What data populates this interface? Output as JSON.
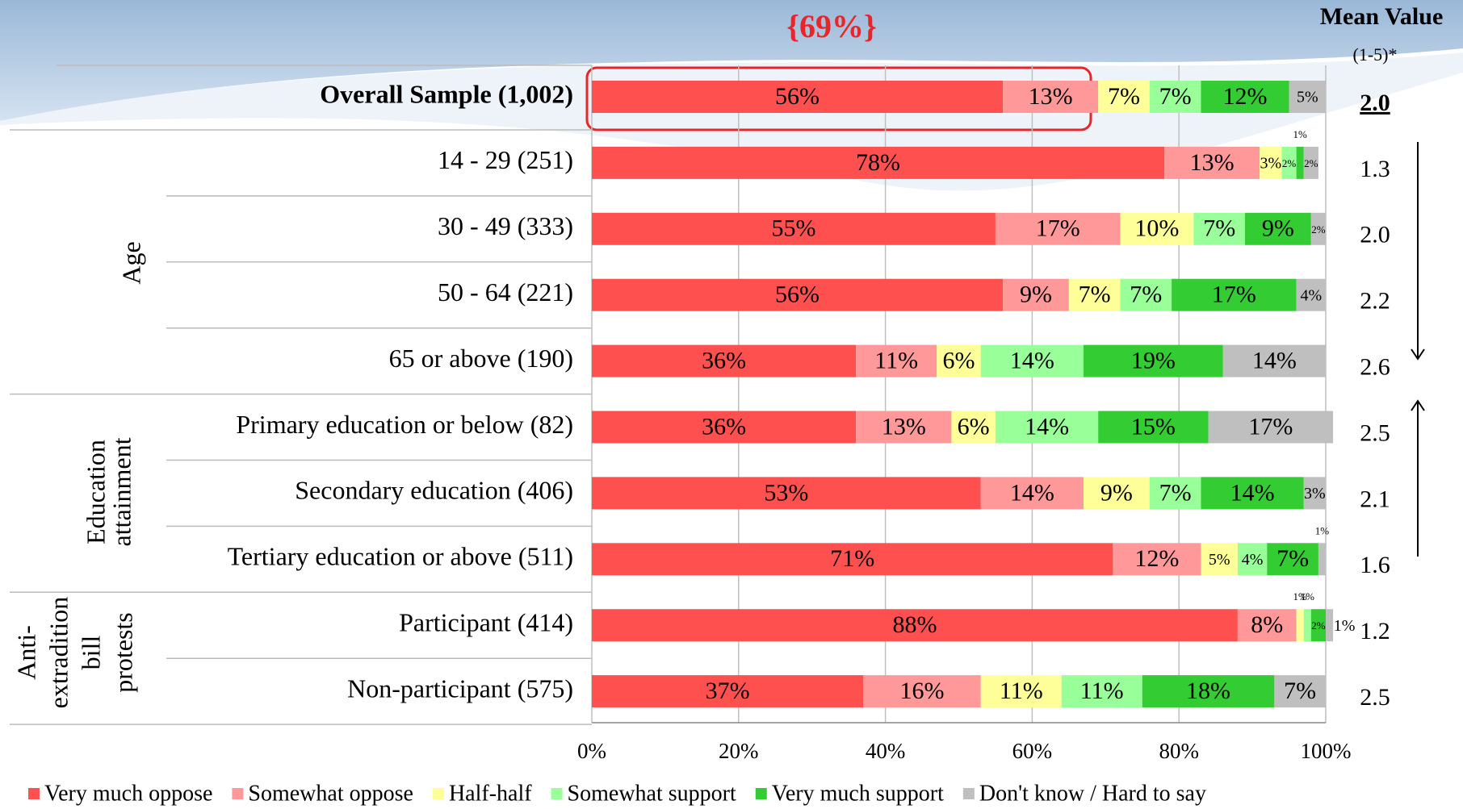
{
  "chart_data": {
    "type": "stacked_barh",
    "annotation": "{69%}",
    "mean_title": "Mean Value",
    "mean_subtitle": "(1-5)*",
    "categories": [
      "Overall Sample (1,002)",
      "14 - 29 (251)",
      "30 - 49 (333)",
      "50 - 64 (221)",
      "65 or above (190)",
      "Primary education or below (82)",
      "Secondary education (406)",
      "Tertiary education or above (511)",
      "Participant (414)",
      "Non-participant (575)"
    ],
    "group_labels": [
      [
        "Age"
      ],
      [
        "Education",
        "attainment"
      ],
      [
        "Anti-",
        "extradition",
        "bill",
        "protests"
      ]
    ],
    "mean_values": [
      "2.0",
      "1.3",
      "2.0",
      "2.2",
      "2.6",
      "2.5",
      "2.1",
      "1.6",
      "1.2",
      "2.5"
    ],
    "series": [
      {
        "name": "Very much oppose",
        "color": "#ff5050",
        "values": [
          56,
          78,
          55,
          56,
          36,
          36,
          53,
          71,
          88,
          37
        ],
        "value_labels": [
          "56%",
          "78%",
          "55%",
          "56%",
          "36%",
          "36%",
          "53%",
          "71%",
          "88%",
          "37%"
        ]
      },
      {
        "name": "Somewhat oppose",
        "color": "#ff9999",
        "values": [
          13,
          13,
          17,
          9,
          11,
          13,
          14,
          12,
          8,
          16
        ],
        "value_labels": [
          "13%",
          "13%",
          "17%",
          "9%",
          "11%",
          "13%",
          "14%",
          "12%",
          "8%",
          "16%"
        ]
      },
      {
        "name": "Half-half",
        "color": "#ffff99",
        "values": [
          7,
          3,
          10,
          7,
          6,
          6,
          9,
          5,
          1,
          11
        ],
        "value_labels": [
          "7%",
          "3%",
          "10%",
          "7%",
          "6%",
          "6%",
          "9%",
          "5%",
          "1%",
          "11%"
        ]
      },
      {
        "name": "Somewhat support",
        "color": "#99ff99",
        "values": [
          7,
          2,
          7,
          7,
          14,
          14,
          7,
          4,
          1,
          11
        ],
        "value_labels": [
          "7%",
          "2%",
          "7%",
          "7%",
          "14%",
          "14%",
          "7%",
          "4%",
          "1%",
          "11%"
        ]
      },
      {
        "name": "Very much support",
        "color": "#33cc33",
        "values": [
          12,
          1,
          9,
          17,
          19,
          15,
          14,
          7,
          2,
          18
        ],
        "value_labels": [
          "12%",
          "1%",
          "9%",
          "17%",
          "19%",
          "15%",
          "14%",
          "7%",
          "2%",
          "18%"
        ]
      },
      {
        "name": "Don't know / Hard to say",
        "color": "#bfbfbf",
        "values": [
          5,
          2,
          2,
          4,
          14,
          17,
          3,
          1,
          1,
          7
        ],
        "value_labels": [
          "5%",
          "2%",
          "2%",
          "4%",
          "14%",
          "17%",
          "3%",
          "1%",
          "1%",
          "7%"
        ]
      }
    ],
    "xlim": [
      0,
      100
    ],
    "xticks": [
      {
        "value": 0,
        "label": "0%"
      },
      {
        "value": 20,
        "label": "20%"
      },
      {
        "value": 40,
        "label": "40%"
      },
      {
        "value": 60,
        "label": "60%"
      },
      {
        "value": 80,
        "label": "80%"
      },
      {
        "value": 100,
        "label": "100%"
      }
    ],
    "grid": true,
    "legend": "bottom"
  }
}
